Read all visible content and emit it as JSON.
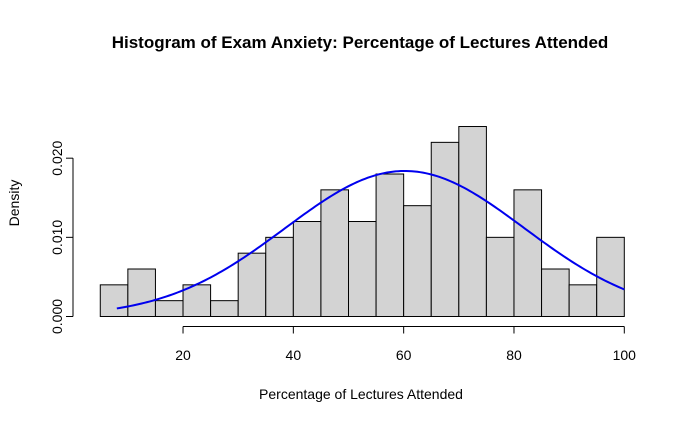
{
  "chart_data": {
    "type": "bar",
    "subtype": "histogram",
    "title": "Histogram of Exam Anxiety: Percentage of Lectures Attended",
    "xlabel": "Percentage of Lectures Attended",
    "ylabel": "Density",
    "xlim": [
      5,
      100
    ],
    "ylim": [
      0,
      0.024
    ],
    "x_ticks": [
      20,
      40,
      60,
      80,
      100
    ],
    "y_ticks": [
      0.0,
      0.01,
      0.02
    ],
    "y_tick_labels": [
      "0.000",
      "0.010",
      "0.020"
    ],
    "bin_width": 5,
    "bins": [
      {
        "start": 5,
        "end": 10,
        "density": 0.004
      },
      {
        "start": 10,
        "end": 15,
        "density": 0.006
      },
      {
        "start": 15,
        "end": 20,
        "density": 0.002
      },
      {
        "start": 20,
        "end": 25,
        "density": 0.004
      },
      {
        "start": 25,
        "end": 30,
        "density": 0.002
      },
      {
        "start": 30,
        "end": 35,
        "density": 0.008
      },
      {
        "start": 35,
        "end": 40,
        "density": 0.01
      },
      {
        "start": 40,
        "end": 45,
        "density": 0.012
      },
      {
        "start": 45,
        "end": 50,
        "density": 0.016
      },
      {
        "start": 50,
        "end": 55,
        "density": 0.012
      },
      {
        "start": 55,
        "end": 60,
        "density": 0.018
      },
      {
        "start": 60,
        "end": 65,
        "density": 0.014
      },
      {
        "start": 65,
        "end": 70,
        "density": 0.022
      },
      {
        "start": 70,
        "end": 75,
        "density": 0.024
      },
      {
        "start": 75,
        "end": 80,
        "density": 0.01
      },
      {
        "start": 80,
        "end": 85,
        "density": 0.016
      },
      {
        "start": 85,
        "end": 90,
        "density": 0.006
      },
      {
        "start": 90,
        "end": 95,
        "density": 0.004
      },
      {
        "start": 95,
        "end": 100,
        "density": 0.01
      }
    ],
    "normal_curve": {
      "mean": 60.2,
      "sd": 21.7,
      "x_range": [
        8,
        100
      ]
    },
    "grid": false,
    "legend": "none",
    "colors": {
      "bar_fill": "#d3d3d3",
      "bar_stroke": "#000000",
      "curve": "#0000ee"
    }
  }
}
